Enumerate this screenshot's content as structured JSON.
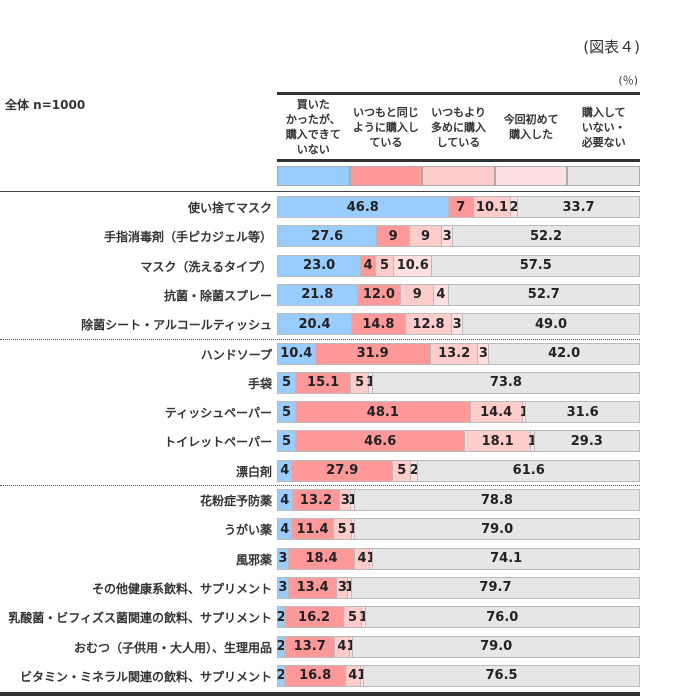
{
  "figure_label": "(図表４)",
  "unit_label": "(％)",
  "sample_label": "全体 n=1000",
  "chart_data": {
    "type": "bar",
    "orientation": "horizontal-stacked-100",
    "series": [
      {
        "name": "買いたかったが、購入できていない",
        "color": "#99ccff"
      },
      {
        "name": "いつもと同じように購入している",
        "color": "#ff9999"
      },
      {
        "name": "いつもより多めに購入している",
        "color": "#ffcccc"
      },
      {
        "name": "今回初めて購入した",
        "color": "#ffe0e0"
      },
      {
        "name": "購入していない・必要ない",
        "color": "#e6e6e6"
      }
    ],
    "groups_break_after": [
      4,
      9
    ],
    "categories": [
      {
        "label": "使い捨てマスク",
        "values": [
          46.8,
          7,
          10.1,
          2,
          33.7
        ],
        "labels": [
          "46.8",
          "7",
          "10.1",
          "2",
          "33.7"
        ]
      },
      {
        "label": "手指消毒剤（手ピカジェル等）",
        "values": [
          27.6,
          9,
          9,
          3,
          52.2
        ],
        "labels": [
          "27.6",
          "9",
          "9",
          "3",
          "52.2"
        ]
      },
      {
        "label": "マスク（洗えるタイプ）",
        "values": [
          23.0,
          4,
          5,
          10.6,
          57.5
        ],
        "labels": [
          "23.0",
          "4",
          "5",
          "10.6",
          "57.5"
        ]
      },
      {
        "label": "抗菌・除菌スプレー",
        "values": [
          21.8,
          12.0,
          9,
          4,
          52.7
        ],
        "labels": [
          "21.8",
          "12.0",
          "9",
          "4",
          "52.7"
        ]
      },
      {
        "label": "除菌シート・アルコールティッシュ",
        "values": [
          20.4,
          14.8,
          12.8,
          3,
          49.0
        ],
        "labels": [
          "20.4",
          "14.8",
          "12.8",
          "3",
          "49.0"
        ]
      },
      {
        "label": "ハンドソープ",
        "values": [
          10.4,
          31.9,
          13.2,
          3,
          42.0
        ],
        "labels": [
          "10.4",
          "31.9",
          "13.2",
          "3",
          "42.0"
        ]
      },
      {
        "label": "手袋",
        "values": [
          5,
          15.1,
          5,
          1,
          73.8
        ],
        "labels": [
          "5",
          "15.1",
          "5",
          "1",
          "73.8"
        ]
      },
      {
        "label": "ティッシュペーパー",
        "values": [
          5,
          48.1,
          14.4,
          1,
          31.6
        ],
        "labels": [
          "5",
          "48.1",
          "14.4",
          "1",
          "31.6"
        ]
      },
      {
        "label": "トイレットペーパー",
        "values": [
          5,
          46.6,
          18.1,
          1,
          29.3
        ],
        "labels": [
          "5",
          "46.6",
          "18.1",
          "1",
          "29.3"
        ]
      },
      {
        "label": "漂白剤",
        "values": [
          4,
          27.9,
          5,
          2,
          61.6
        ],
        "labels": [
          "4",
          "27.9",
          "5",
          "2",
          "61.6"
        ]
      },
      {
        "label": "花粉症予防薬",
        "values": [
          4,
          13.2,
          3,
          1,
          78.8
        ],
        "labels": [
          "4",
          "13.2",
          "3",
          "1",
          "78.8"
        ]
      },
      {
        "label": "うがい薬",
        "values": [
          4,
          11.4,
          5,
          1,
          79.0
        ],
        "labels": [
          "4",
          "11.4",
          "5",
          "1",
          "79.0"
        ]
      },
      {
        "label": "風邪薬",
        "values": [
          3,
          18.4,
          4,
          1,
          74.1
        ],
        "labels": [
          "3",
          "18.4",
          "4",
          "1",
          "74.1"
        ]
      },
      {
        "label": "その他健康系飲料、サプリメント",
        "values": [
          3,
          13.4,
          3,
          1,
          79.7
        ],
        "labels": [
          "3",
          "13.4",
          "3",
          "1",
          "79.7"
        ]
      },
      {
        "label": "乳酸菌・ビフィズス菌関連の飲料、サプリメント",
        "values": [
          2,
          16.2,
          5,
          1,
          76.0
        ],
        "labels": [
          "2",
          "16.2",
          "5",
          "1",
          "76.0"
        ]
      },
      {
        "label": "おむつ（子供用・大人用）、生理用品",
        "values": [
          2,
          13.7,
          4,
          1,
          79.0
        ],
        "labels": [
          "2",
          "13.7",
          "4",
          "1",
          "79.0"
        ]
      },
      {
        "label": "ビタミン・ミネラル関連の飲料、サプリメント",
        "values": [
          2,
          16.8,
          4,
          1,
          76.5
        ],
        "labels": [
          "2",
          "16.8",
          "4",
          "1",
          "76.5"
        ]
      }
    ],
    "column_headers": [
      "買いた\nかったが、\n購入できて\nいない",
      "いつもと同じ\nように購入し\nている",
      "いつもより\n多めに購入\nしている",
      "今回初めて\n購入した",
      "購入して\nいない・\n必要ない"
    ],
    "xlim": [
      0,
      100
    ]
  }
}
